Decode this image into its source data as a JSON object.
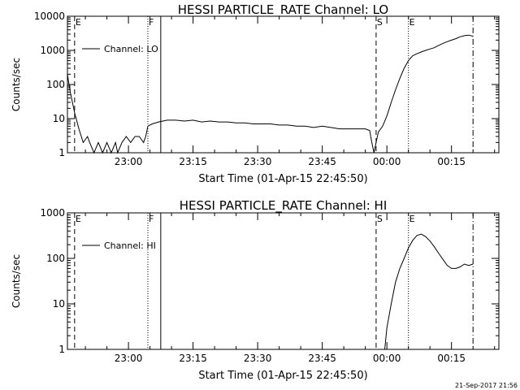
{
  "timestamp": "21-Sep-2017 21:56",
  "chart_data": [
    {
      "type": "line",
      "title": "HESSI PARTICLE_RATE Channel: LO",
      "xlabel": "Start Time (01-Apr-15 22:45:50)",
      "ylabel": "Counts/sec",
      "y_scale": "log",
      "ylim": [
        1,
        10000
      ],
      "xlim": [
        "22:45:50",
        "00:26:00"
      ],
      "x_ticks": [
        "23:00",
        "23:15",
        "23:30",
        "23:45",
        "00:00",
        "00:15"
      ],
      "y_ticks": [
        "1",
        "10",
        "100",
        "1000",
        "10000"
      ],
      "legend": "upper-left",
      "markers": [
        {
          "label": "E",
          "time": "22:47:30",
          "style": "dashed"
        },
        {
          "label": "F",
          "time": "23:04:30",
          "style": "dotted"
        },
        {
          "label": "",
          "time": "23:07:30",
          "style": "solid"
        },
        {
          "label": "S",
          "time": "23:57:30",
          "style": "dashed"
        },
        {
          "label": "E",
          "time": "00:05:00",
          "style": "dotted"
        },
        {
          "label": "",
          "time": "00:20:00",
          "style": "dashdot"
        }
      ],
      "series": [
        {
          "name": "Channel: LO",
          "x": [
            "22:45:50",
            "22:46:30",
            "22:47:30",
            "22:48:30",
            "22:49:30",
            "22:50:30",
            "22:51:00",
            "22:52:00",
            "22:53:00",
            "22:54:00",
            "22:55:00",
            "22:56:00",
            "22:57:00",
            "22:57:30",
            "22:58:30",
            "22:59:30",
            "23:00:30",
            "23:01:30",
            "23:02:30",
            "23:03:30",
            "23:04:00",
            "23:04:30",
            "23:05:30",
            "23:07:00",
            "23:09:00",
            "23:11:00",
            "23:13:00",
            "23:15:00",
            "23:17:00",
            "23:19:00",
            "23:21:00",
            "23:23:00",
            "23:25:00",
            "23:27:00",
            "23:29:00",
            "23:31:00",
            "23:33:00",
            "23:35:00",
            "23:37:00",
            "23:39:00",
            "23:41:00",
            "23:43:00",
            "23:45:00",
            "23:47:00",
            "23:49:00",
            "23:51:00",
            "23:53:00",
            "23:55:00",
            "23:56:00",
            "23:56:30",
            "23:57:00",
            "23:57:30",
            "23:58:00",
            "23:59:00",
            "00:00:00",
            "00:01:00",
            "00:02:00",
            "00:03:00",
            "00:04:00",
            "00:05:00",
            "00:06:00",
            "00:07:00",
            "00:08:00",
            "00:09:00",
            "00:10:00",
            "00:11:00",
            "00:12:00",
            "00:13:00",
            "00:14:00",
            "00:15:00",
            "00:16:00",
            "00:17:00",
            "00:18:00",
            "00:19:00",
            "00:20:00"
          ],
          "y": [
            200,
            60,
            15,
            5,
            2,
            3,
            2,
            1,
            2,
            1,
            2,
            1,
            2,
            1,
            2,
            3,
            2,
            3,
            3,
            2,
            3,
            6,
            7,
            8,
            9,
            9,
            8.5,
            9,
            8,
            8.5,
            8,
            8,
            7.5,
            7.5,
            7,
            7,
            7,
            6.5,
            6.5,
            6,
            6,
            5.5,
            6,
            5.5,
            5,
            5,
            5,
            5,
            4.5,
            2,
            1,
            2,
            4,
            6,
            12,
            30,
            70,
            150,
            300,
            500,
            700,
            800,
            900,
            1000,
            1100,
            1200,
            1400,
            1600,
            1800,
            2000,
            2200,
            2500,
            2700,
            2800,
            2600
          ]
        }
      ]
    },
    {
      "type": "line",
      "title": "HESSI PARTICLE_RATE Channel: HI",
      "xlabel": "Start Time (01-Apr-15 22:45:50)",
      "ylabel": "Counts/sec",
      "y_scale": "log",
      "ylim": [
        1,
        1000
      ],
      "xlim": [
        "22:45:50",
        "00:26:00"
      ],
      "x_ticks": [
        "23:00",
        "23:15",
        "23:30",
        "23:45",
        "00:00",
        "00:15"
      ],
      "y_ticks": [
        "1",
        "10",
        "100",
        "1000"
      ],
      "legend": "upper-left",
      "markers": [
        {
          "label": "E",
          "time": "22:47:30",
          "style": "dashed"
        },
        {
          "label": "F",
          "time": "23:04:30",
          "style": "dotted"
        },
        {
          "label": "",
          "time": "23:07:30",
          "style": "solid"
        },
        {
          "label": "S",
          "time": "23:57:30",
          "style": "dashed"
        },
        {
          "label": "E",
          "time": "00:05:00",
          "style": "dotted"
        },
        {
          "label": "",
          "time": "00:20:00",
          "style": "dashdot"
        }
      ],
      "series": [
        {
          "name": "Channel: HI",
          "x": [
            "23:59:30",
            "00:00:00",
            "00:01:00",
            "00:02:00",
            "00:03:00",
            "00:04:00",
            "00:05:00",
            "00:06:00",
            "00:07:00",
            "00:08:00",
            "00:09:00",
            "00:10:00",
            "00:11:00",
            "00:12:00",
            "00:13:00",
            "00:14:00",
            "00:15:00",
            "00:16:00",
            "00:17:00",
            "00:18:00",
            "00:19:00",
            "00:20:00"
          ],
          "y": [
            1,
            3,
            10,
            30,
            60,
            100,
            170,
            250,
            320,
            340,
            300,
            240,
            180,
            130,
            95,
            70,
            60,
            60,
            65,
            75,
            70,
            75
          ]
        }
      ]
    }
  ]
}
